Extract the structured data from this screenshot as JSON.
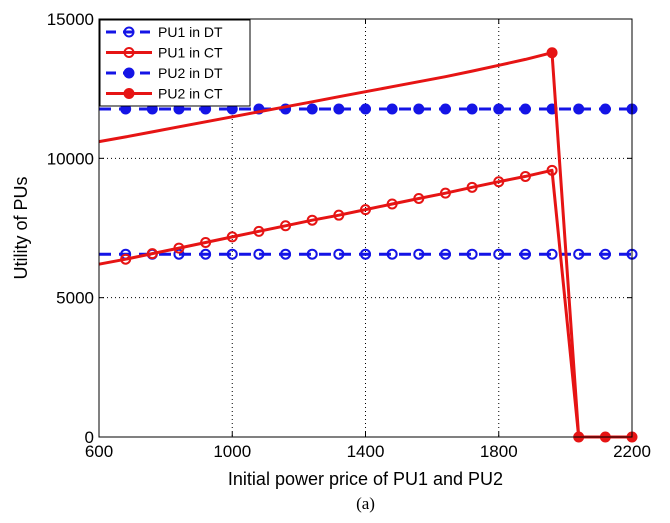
{
  "chart_data": {
    "type": "line",
    "xlabel": "Initial power price of PU1 and PU2",
    "ylabel": "Utility of PUs",
    "caption": "(a)",
    "xlim": [
      600,
      2200
    ],
    "ylim": [
      0,
      15000
    ],
    "x_ticks": [
      600,
      1000,
      1400,
      1800,
      2200
    ],
    "y_ticks": [
      0,
      5000,
      10000,
      15000
    ],
    "grid": "dotted",
    "legend_position": "top-left",
    "series": [
      {
        "name": "PU1 in DT",
        "color": "#1414e6",
        "line_style": "dashed",
        "marker": "open-circle",
        "x": [
          600,
          680,
          760,
          840,
          920,
          1000,
          1080,
          1160,
          1240,
          1320,
          1400,
          1480,
          1560,
          1640,
          1720,
          1800,
          1880,
          1960,
          2040,
          2120,
          2200
        ],
        "y": [
          6560,
          6560,
          6560,
          6560,
          6560,
          6560,
          6560,
          6560,
          6560,
          6560,
          6560,
          6560,
          6560,
          6560,
          6560,
          6560,
          6560,
          6560,
          6560,
          6560,
          6560
        ],
        "marker_x": [
          680,
          760,
          840,
          920,
          1000,
          1080,
          1160,
          1240,
          1320,
          1400,
          1480,
          1560,
          1640,
          1720,
          1800,
          1880,
          1960,
          2040,
          2120,
          2200
        ]
      },
      {
        "name": "PU1 in CT",
        "color": "#e61414",
        "line_style": "solid",
        "marker": "open-circle",
        "x": [
          600,
          680,
          760,
          840,
          920,
          1000,
          1080,
          1160,
          1240,
          1320,
          1400,
          1480,
          1560,
          1640,
          1720,
          1800,
          1880,
          1960,
          2040,
          2120,
          2200
        ],
        "y": [
          6200,
          6380,
          6580,
          6780,
          6980,
          7180,
          7380,
          7580,
          7780,
          7960,
          8160,
          8360,
          8560,
          8750,
          8960,
          9160,
          9350,
          9570,
          0,
          0,
          0
        ],
        "marker_x": [
          680,
          760,
          840,
          920,
          1000,
          1080,
          1160,
          1240,
          1320,
          1400,
          1480,
          1560,
          1640,
          1720,
          1800,
          1880,
          1960
        ]
      },
      {
        "name": "PU2 in DT",
        "color": "#1414e6",
        "line_style": "dashed",
        "marker": "filled-dot",
        "x": [
          600,
          680,
          760,
          840,
          920,
          1000,
          1080,
          1160,
          1240,
          1320,
          1400,
          1480,
          1560,
          1640,
          1720,
          1800,
          1880,
          1960,
          2040,
          2120,
          2200
        ],
        "y": [
          11770,
          11770,
          11770,
          11770,
          11770,
          11770,
          11770,
          11770,
          11770,
          11770,
          11770,
          11770,
          11770,
          11770,
          11770,
          11770,
          11770,
          11770,
          11770,
          11770,
          11770
        ],
        "marker_x": [
          680,
          760,
          840,
          920,
          1000,
          1080,
          1160,
          1240,
          1320,
          1400,
          1480,
          1560,
          1640,
          1720,
          1800,
          1880,
          1960,
          2040,
          2120,
          2200
        ]
      },
      {
        "name": "PU2 in CT",
        "color": "#e61414",
        "line_style": "solid",
        "marker": "filled-dot",
        "x": [
          600,
          680,
          760,
          840,
          920,
          1000,
          1080,
          1160,
          1240,
          1320,
          1400,
          1480,
          1560,
          1640,
          1720,
          1800,
          1880,
          1960,
          2040,
          2120,
          2200
        ],
        "y": [
          10600,
          10770,
          10950,
          11130,
          11310,
          11490,
          11670,
          11850,
          12030,
          12210,
          12390,
          12570,
          12750,
          12930,
          13130,
          13340,
          13550,
          13790,
          0,
          0,
          0
        ],
        "marker_x": [
          1960,
          2040,
          2120,
          2200
        ]
      }
    ]
  }
}
